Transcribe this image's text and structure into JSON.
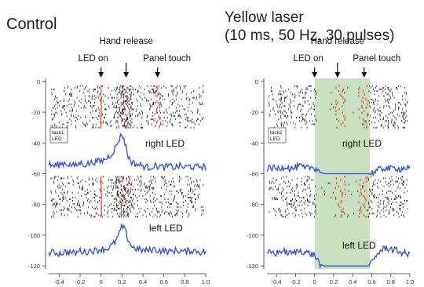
{
  "chart_data": [
    {
      "type": "line",
      "title": "Control",
      "xlim": [
        -0.5,
        1.0
      ],
      "ylim": [
        -122,
        2
      ],
      "x_ticks": [
        -0.4,
        -0.2,
        0,
        0.2,
        0.4,
        0.6,
        0.8,
        1.0
      ],
      "x_tick_labels": [
        "-0.4",
        "-0.2",
        "0",
        "0.2",
        "0.4",
        "0.6",
        "0.8",
        "1.0"
      ],
      "y_ticks": [
        0,
        -20,
        -40,
        -60,
        -80,
        -100,
        -120
      ],
      "y_tick_labels": [
        "0",
        "-20",
        "-40",
        "-60",
        "-80",
        "-100",
        "-120"
      ],
      "events": [
        {
          "label": "LED on",
          "x": 0.0
        },
        {
          "label": "Hand release",
          "x": 0.24
        },
        {
          "label": "Panel touch",
          "x": 0.54
        }
      ],
      "task_label": [
        "task1",
        "LED"
      ],
      "raster_blocks": [
        {
          "y_range": [
            -3,
            -30
          ],
          "lever_x": [
            0.18,
            0.28
          ],
          "touch_x": [
            0.5,
            0.58
          ]
        },
        {
          "y_range": [
            -62,
            -88
          ],
          "lever_x": [
            0.18,
            0.28
          ],
          "touch_x": null
        }
      ],
      "series": [
        {
          "name": "right LED",
          "color": "#2c4ee0",
          "x": [
            -0.5,
            -0.45,
            -0.4,
            -0.35,
            -0.3,
            -0.25,
            -0.2,
            -0.15,
            -0.1,
            -0.05,
            0.0,
            0.05,
            0.1,
            0.14,
            0.17,
            0.2,
            0.23,
            0.26,
            0.3,
            0.35,
            0.4,
            0.45,
            0.5,
            0.55,
            0.6,
            0.65,
            0.7,
            0.75,
            0.8,
            0.85,
            0.9,
            0.95,
            1.0
          ],
          "y": [
            -54,
            -55,
            -54,
            -53,
            -54,
            -55,
            -53,
            -54,
            -53,
            -52,
            -52,
            -50,
            -47,
            -43,
            -38,
            -34,
            -40,
            -49,
            -53,
            -54,
            -55,
            -56,
            -55,
            -55,
            -56,
            -55,
            -56,
            -55,
            -56,
            -55,
            -56,
            -55,
            -56
          ]
        },
        {
          "name": "left LED",
          "color": "#2c4ee0",
          "x": [
            -0.5,
            -0.45,
            -0.4,
            -0.35,
            -0.3,
            -0.25,
            -0.2,
            -0.15,
            -0.1,
            -0.05,
            0.0,
            0.05,
            0.1,
            0.14,
            0.17,
            0.2,
            0.23,
            0.26,
            0.3,
            0.35,
            0.4,
            0.45,
            0.5,
            0.55,
            0.6,
            0.65,
            0.7,
            0.75,
            0.8,
            0.85,
            0.9,
            0.95,
            1.0
          ],
          "y": [
            -112,
            -111,
            -112,
            -111,
            -111,
            -112,
            -110,
            -111,
            -110,
            -110,
            -109,
            -109,
            -107,
            -104,
            -100,
            -94,
            -97,
            -103,
            -108,
            -109,
            -110,
            -110,
            -109,
            -110,
            -110,
            -111,
            -110,
            -110,
            -111,
            -110,
            -110,
            -111,
            -111
          ]
        }
      ]
    },
    {
      "type": "line",
      "title": "Yellow laser",
      "subtitle": "(10 ms, 50 Hz, 30 pulses)",
      "xlim": [
        -0.5,
        1.0
      ],
      "ylim": [
        -122,
        2
      ],
      "x_ticks": [
        -0.4,
        -0.2,
        0,
        0.2,
        0.4,
        0.6,
        0.8,
        1.0
      ],
      "x_tick_labels": [
        "-0.4",
        "-0.2",
        "0",
        "0.2",
        "0.4",
        "0.6",
        "0.8",
        "1.0"
      ],
      "y_ticks": [
        0,
        -20,
        -40,
        -60,
        -80,
        -100,
        -120
      ],
      "y_tick_labels": [
        "0",
        "-20",
        "-40",
        "-60",
        "-80",
        "-100",
        "-120"
      ],
      "events": [
        {
          "label": "LED on",
          "x": 0.0
        },
        {
          "label": "Hand release",
          "x": 0.24
        },
        {
          "label": "Panel touch",
          "x": 0.52
        }
      ],
      "task_label": [
        "task2",
        "LED"
      ],
      "laser_window": [
        0.0,
        0.58
      ],
      "laser_color": "#c9e0c0",
      "raster_blocks": [
        {
          "y_range": [
            -3,
            -30
          ],
          "lever_x": [
            0.22,
            0.32
          ],
          "touch_x": [
            0.46,
            0.56
          ]
        },
        {
          "y_range": [
            -62,
            -88
          ],
          "lever_x": [
            0.22,
            0.32
          ],
          "touch_x": [
            0.46,
            0.56
          ]
        }
      ],
      "series": [
        {
          "name": "right LED",
          "color": "#2c4ee0",
          "x": [
            -0.5,
            -0.45,
            -0.4,
            -0.35,
            -0.3,
            -0.25,
            -0.2,
            -0.15,
            -0.1,
            -0.05,
            0.0,
            0.03,
            0.06,
            0.1,
            0.2,
            0.3,
            0.4,
            0.5,
            0.58,
            0.62,
            0.66,
            0.7,
            0.75,
            0.8,
            0.85,
            0.9,
            0.95,
            1.0
          ],
          "y": [
            -57,
            -56,
            -57,
            -56,
            -55,
            -57,
            -56,
            -55,
            -57,
            -56,
            -56,
            -57,
            -59,
            -60,
            -60,
            -60,
            -60,
            -60,
            -60,
            -59,
            -58,
            -57,
            -56,
            -57,
            -56,
            -57,
            -56,
            -57
          ]
        },
        {
          "name": "left LED",
          "color": "#2c4ee0",
          "x": [
            -0.5,
            -0.45,
            -0.4,
            -0.35,
            -0.3,
            -0.25,
            -0.2,
            -0.15,
            -0.1,
            -0.05,
            0.0,
            0.03,
            0.06,
            0.1,
            0.2,
            0.3,
            0.4,
            0.5,
            0.58,
            0.62,
            0.66,
            0.7,
            0.75,
            0.8,
            0.85,
            0.9,
            0.95,
            1.0
          ],
          "y": [
            -112,
            -111,
            -112,
            -110,
            -111,
            -112,
            -111,
            -110,
            -111,
            -112,
            -113,
            -116,
            -119,
            -120,
            -120,
            -120,
            -120,
            -120,
            -120,
            -116,
            -112,
            -110,
            -108,
            -109,
            -110,
            -111,
            -112,
            -113
          ]
        }
      ]
    }
  ]
}
